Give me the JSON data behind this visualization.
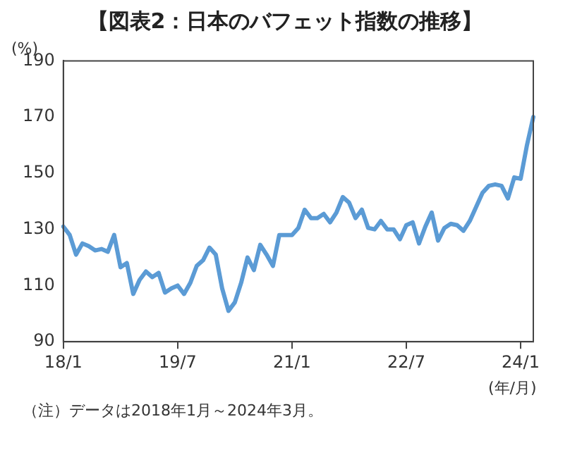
{
  "chart_data": {
    "type": "line",
    "title": "【図表2：日本のバフェット指数の推移】",
    "ylabel": "(%)",
    "xlabel": "(年/月)",
    "categories": [
      "18/1",
      null,
      null,
      null,
      null,
      null,
      null,
      null,
      null,
      null,
      null,
      null,
      null,
      null,
      null,
      null,
      null,
      null,
      "19/7",
      null,
      null,
      null,
      null,
      null,
      null,
      null,
      null,
      null,
      null,
      null,
      null,
      null,
      null,
      null,
      null,
      null,
      "21/1",
      null,
      null,
      null,
      null,
      null,
      null,
      null,
      null,
      null,
      null,
      null,
      null,
      null,
      null,
      null,
      null,
      null,
      "22/7",
      null,
      null,
      null,
      null,
      null,
      null,
      null,
      null,
      null,
      null,
      null,
      null,
      null,
      null,
      null,
      null,
      null,
      "24/1",
      null,
      null
    ],
    "series": [
      {
        "color": "#5b9bd5",
        "values": [
          131,
          128,
          121,
          125,
          124,
          122.5,
          123,
          122,
          128,
          116.5,
          118,
          107,
          112,
          115,
          113,
          114.5,
          107.5,
          109,
          110,
          107,
          111,
          117,
          119,
          123.5,
          121,
          109,
          101,
          104,
          111,
          120,
          115.5,
          124.5,
          121,
          117,
          128,
          128,
          128,
          130.5,
          137,
          134,
          134,
          135.5,
          132.5,
          136,
          141.5,
          139.5,
          134,
          137,
          130.5,
          130,
          133,
          130,
          130,
          126.5,
          131.5,
          132.5,
          125,
          131,
          136,
          126,
          130.5,
          132,
          131.5,
          129.5,
          133,
          138,
          143,
          145.5,
          146,
          145.5,
          141,
          148.5,
          148,
          160,
          170
        ]
      }
    ],
    "ylim": [
      90,
      190
    ],
    "yticks": [
      90,
      110,
      130,
      150,
      170,
      190
    ],
    "grid": false,
    "legend": false,
    "marker": "none",
    "line_style": "solid",
    "annotations": [
      "（注）データは2018年1月～2024年3月。"
    ]
  }
}
